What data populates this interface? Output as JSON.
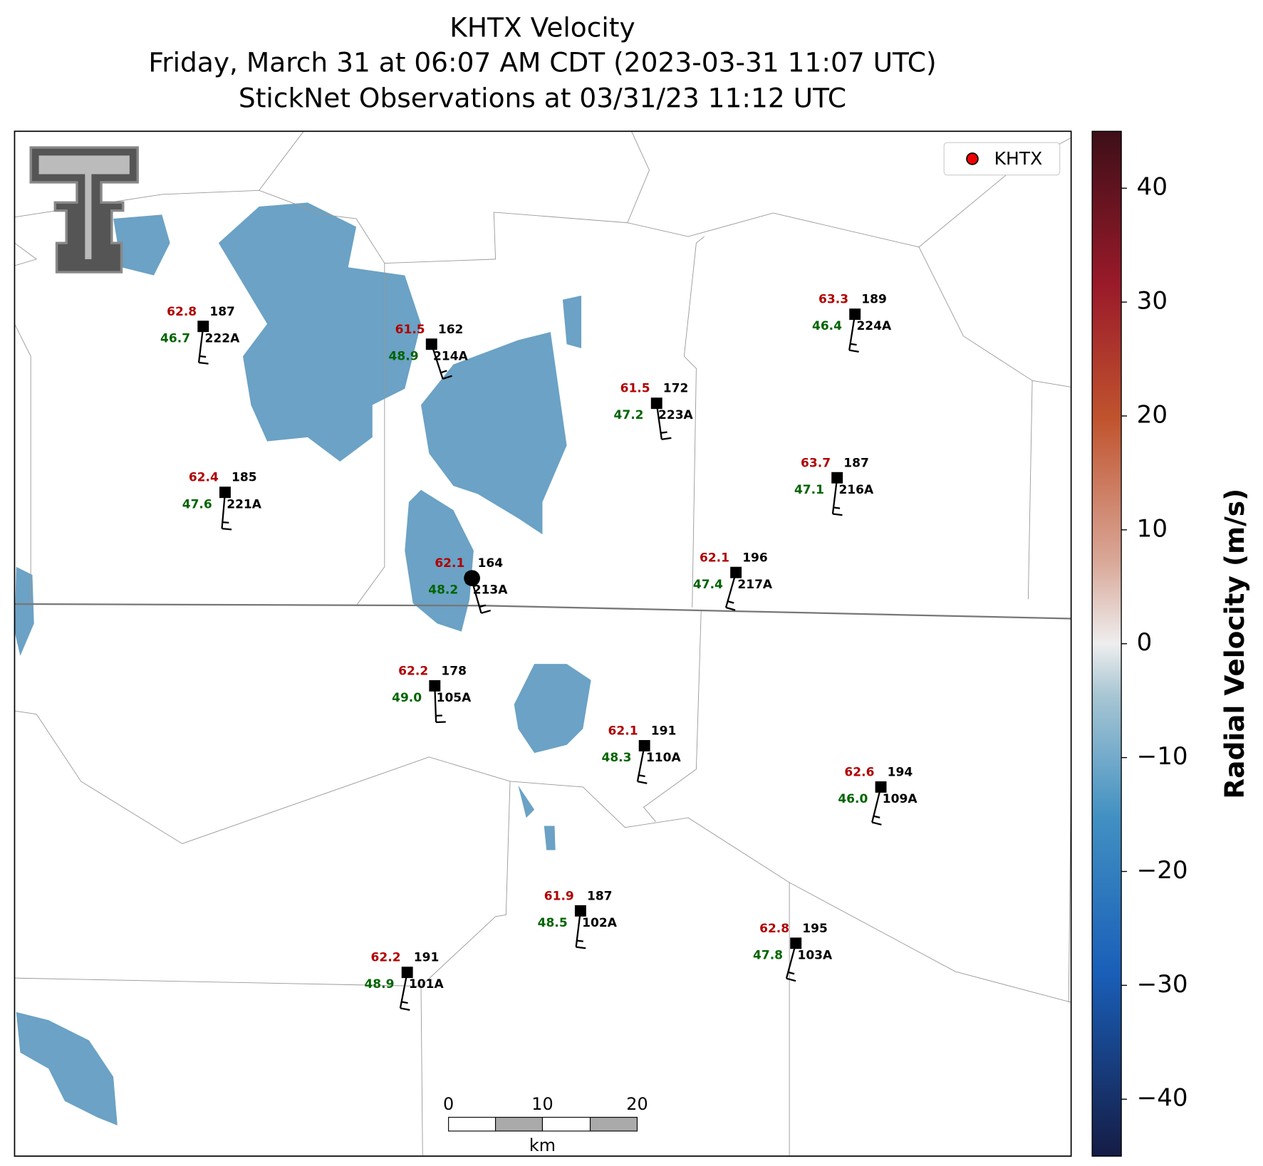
{
  "title": [
    "KHTX Velocity",
    "Friday, March 31 at 06:07 AM CDT (2023-03-31 11:07 UTC)",
    "StickNet Observations at 03/31/23 11:12 UTC"
  ],
  "legend": [
    "KHTX"
  ],
  "colorbar": {
    "label": "Radial Velocity (m/s)",
    "ylim": [
      -45,
      45
    ],
    "yticks": [
      {
        "value": -40,
        "label": "−40"
      },
      {
        "value": -30,
        "label": "−30"
      },
      {
        "value": -20,
        "label": "−20"
      },
      {
        "value": -10,
        "label": "−10"
      },
      0,
      10,
      20,
      30,
      40
    ]
  },
  "stations": [
    {
      "id": "222A",
      "temp": "62.8",
      "dir": "187",
      "dew": "46.7"
    },
    {
      "id": "214A",
      "temp": "61.5",
      "dir": "162",
      "dew": "48.9"
    },
    {
      "id": "223A",
      "temp": "61.5",
      "dir": "172",
      "dew": "47.2"
    },
    {
      "id": "224A",
      "temp": "63.3",
      "dir": "189",
      "dew": "46.4"
    },
    {
      "id": "216A",
      "temp": "63.7",
      "dir": "187",
      "dew": "47.1"
    },
    {
      "id": "221A",
      "temp": "62.4",
      "dir": "185",
      "dew": "47.6"
    },
    {
      "id": "213A",
      "temp": "62.1",
      "dir": "164",
      "dew": "48.2"
    },
    {
      "id": "217A",
      "temp": "62.1",
      "dir": "196",
      "dew": "47.4"
    },
    {
      "id": "105A",
      "temp": "62.2",
      "dir": "178",
      "dew": "49.0"
    },
    {
      "id": "110A",
      "temp": "62.1",
      "dir": "191",
      "dew": "48.3"
    },
    {
      "id": "109A",
      "temp": "62.6",
      "dir": "194",
      "dew": "46.0"
    },
    {
      "id": "102A",
      "temp": "61.9",
      "dir": "187",
      "dew": "48.5"
    },
    {
      "id": "103A",
      "temp": "62.8",
      "dir": "195",
      "dew": "47.8"
    },
    {
      "id": "101A",
      "temp": "62.2",
      "dir": "191",
      "dew": "48.9"
    }
  ],
  "scale_bar": {
    "labels": [
      "0",
      "10",
      "20"
    ],
    "unit": "km"
  }
}
